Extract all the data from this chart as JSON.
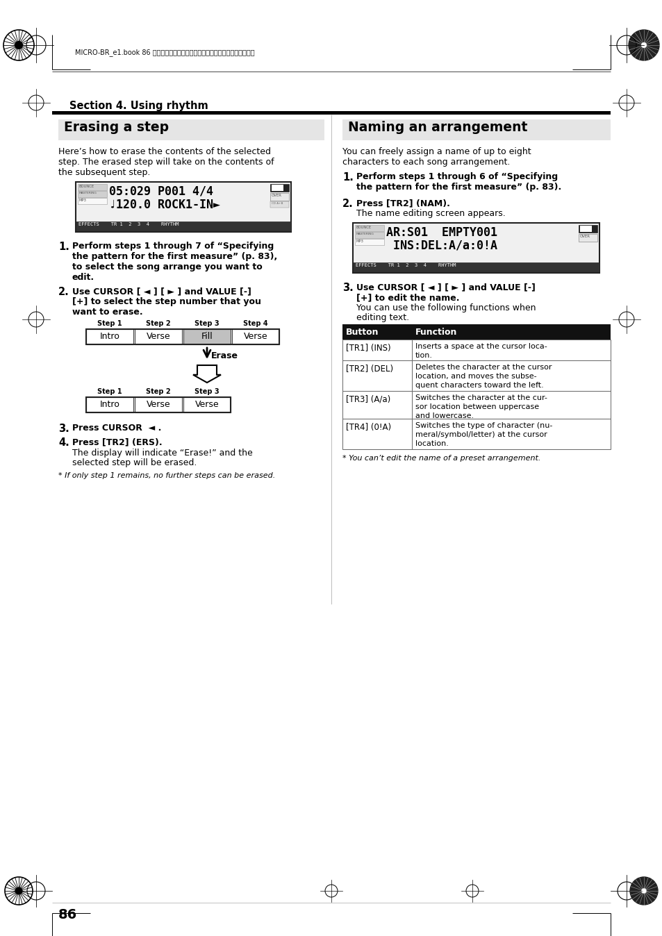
{
  "page_title": "Section 4. Using rhythm",
  "header_text": "MICRO-BR_e1.book 86 ページ　２００６年８月１日　火曜日　午後１２時６分",
  "left_section_title": "Erasing a step",
  "left_section_intro_1": "Here’s how to erase the contents of the selected",
  "left_section_intro_2": "step. The erased step will take on the contents of",
  "left_section_intro_3": "the subsequent step.",
  "lcd1_line1": "05:029 P001 4/4",
  "lcd1_line2": "♩120.0 ROCK1-IN►",
  "lcd1_footer": "EFFECTS    TR 1  2  3  4    RHYTHM",
  "left_footnote": "* If only step 1 remains, no further steps can be erased.",
  "diagram_before_steps": [
    "Step 1",
    "Step 2",
    "Step 3",
    "Step 4"
  ],
  "diagram_before_labels": [
    "Intro",
    "Verse",
    "Fill",
    "Verse"
  ],
  "diagram_before_highlight": 2,
  "diagram_after_steps": [
    "Step 1",
    "Step 2",
    "Step 3"
  ],
  "diagram_after_labels": [
    "Intro",
    "Verse",
    "Verse"
  ],
  "right_section_title": "Naming an arrangement",
  "right_section_intro_1": "You can freely assign a name of up to eight",
  "right_section_intro_2": "characters to each song arrangement.",
  "lcd2_line1": "AR:S01  EMPTY001",
  "lcd2_line2": " INS:DEL:A/a:0!A",
  "lcd2_footer": "EFFECTS    TR 1  2  3  4    RHYTHM",
  "right_footnote": "* You can’t edit the name of a preset arrangement.",
  "table_headers": [
    "Button",
    "Function"
  ],
  "table_rows": [
    [
      "[TR1] (INS)",
      "Inserts a space at the cursor loca-\ntion."
    ],
    [
      "[TR2] (DEL)",
      "Deletes the character at the cursor\nlocation, and moves the subse-\nquent characters toward the left."
    ],
    [
      "[TR3] (A/a)",
      "Switches the character at the cur-\nsor location between uppercase\nand lowercase."
    ],
    [
      "[TR4] (0!A)",
      "Switches the type of character (nu-\nmeral/symbol/letter) at the cursor\nlocation."
    ]
  ],
  "page_number": "86",
  "bg_color": "#ffffff"
}
